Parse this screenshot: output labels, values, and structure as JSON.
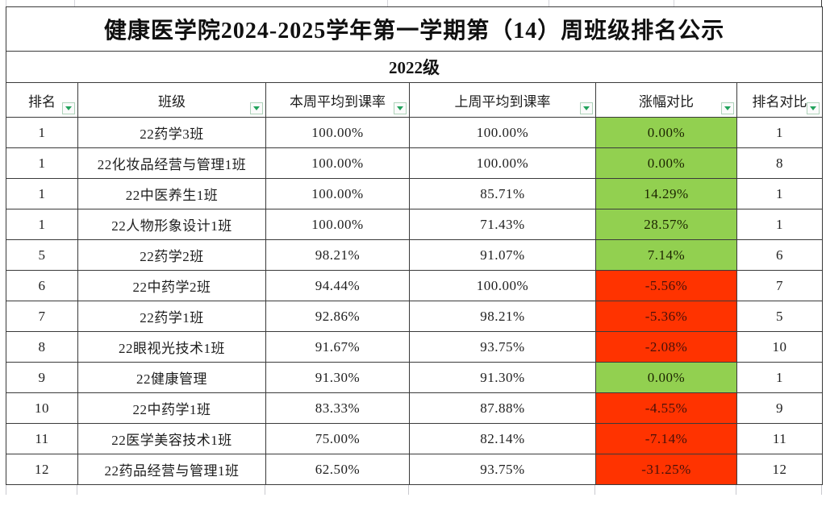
{
  "sheet": {
    "title": "健康医学院2024-2025学年第一学期第（14）周班级排名公示",
    "group_label": "2022级"
  },
  "table": {
    "columns": [
      {
        "label": "排名"
      },
      {
        "label": "班级"
      },
      {
        "label": "本周平均到课率"
      },
      {
        "label": "上周平均到课率"
      },
      {
        "label": "涨幅对比"
      },
      {
        "label": "排名对比"
      }
    ],
    "rows": [
      {
        "rank": "1",
        "class_name": "22药学3班",
        "this_week": "100.00%",
        "last_week": "100.00%",
        "change": "0.00%",
        "trend": "positive",
        "rank_compare": "1"
      },
      {
        "rank": "1",
        "class_name": "22化妆品经营与管理1班",
        "this_week": "100.00%",
        "last_week": "100.00%",
        "change": "0.00%",
        "trend": "positive",
        "rank_compare": "8"
      },
      {
        "rank": "1",
        "class_name": "22中医养生1班",
        "this_week": "100.00%",
        "last_week": "85.71%",
        "change": "14.29%",
        "trend": "positive",
        "rank_compare": "1"
      },
      {
        "rank": "1",
        "class_name": "22人物形象设计1班",
        "this_week": "100.00%",
        "last_week": "71.43%",
        "change": "28.57%",
        "trend": "positive",
        "rank_compare": "1"
      },
      {
        "rank": "5",
        "class_name": "22药学2班",
        "this_week": "98.21%",
        "last_week": "91.07%",
        "change": "7.14%",
        "trend": "positive",
        "rank_compare": "6"
      },
      {
        "rank": "6",
        "class_name": "22中药学2班",
        "this_week": "94.44%",
        "last_week": "100.00%",
        "change": "-5.56%",
        "trend": "negative",
        "rank_compare": "7"
      },
      {
        "rank": "7",
        "class_name": "22药学1班",
        "this_week": "92.86%",
        "last_week": "98.21%",
        "change": "-5.36%",
        "trend": "negative",
        "rank_compare": "5"
      },
      {
        "rank": "8",
        "class_name": "22眼视光技术1班",
        "this_week": "91.67%",
        "last_week": "93.75%",
        "change": "-2.08%",
        "trend": "negative",
        "rank_compare": "10"
      },
      {
        "rank": "9",
        "class_name": "22健康管理",
        "this_week": "91.30%",
        "last_week": "91.30%",
        "change": "0.00%",
        "trend": "positive",
        "rank_compare": "1"
      },
      {
        "rank": "10",
        "class_name": "22中药学1班",
        "this_week": "83.33%",
        "last_week": "87.88%",
        "change": "-4.55%",
        "trend": "negative",
        "rank_compare": "9"
      },
      {
        "rank": "11",
        "class_name": "22医学美容技术1班",
        "this_week": "75.00%",
        "last_week": "82.14%",
        "change": "-7.14%",
        "trend": "negative",
        "rank_compare": "11"
      },
      {
        "rank": "12",
        "class_name": "22药品经营与管理1班",
        "this_week": "62.50%",
        "last_week": "93.75%",
        "change": "-31.25%",
        "trend": "negative",
        "rank_compare": "12"
      }
    ]
  },
  "colors": {
    "positive": "#92D050",
    "positive_text": "#1c2400",
    "negative": "#FF3300",
    "negative_text": "#47110a",
    "filter_triangle": "#21A35C",
    "grid": "#3a3a3a"
  },
  "icons": {
    "filter_dropdown": "chevron-down"
  }
}
